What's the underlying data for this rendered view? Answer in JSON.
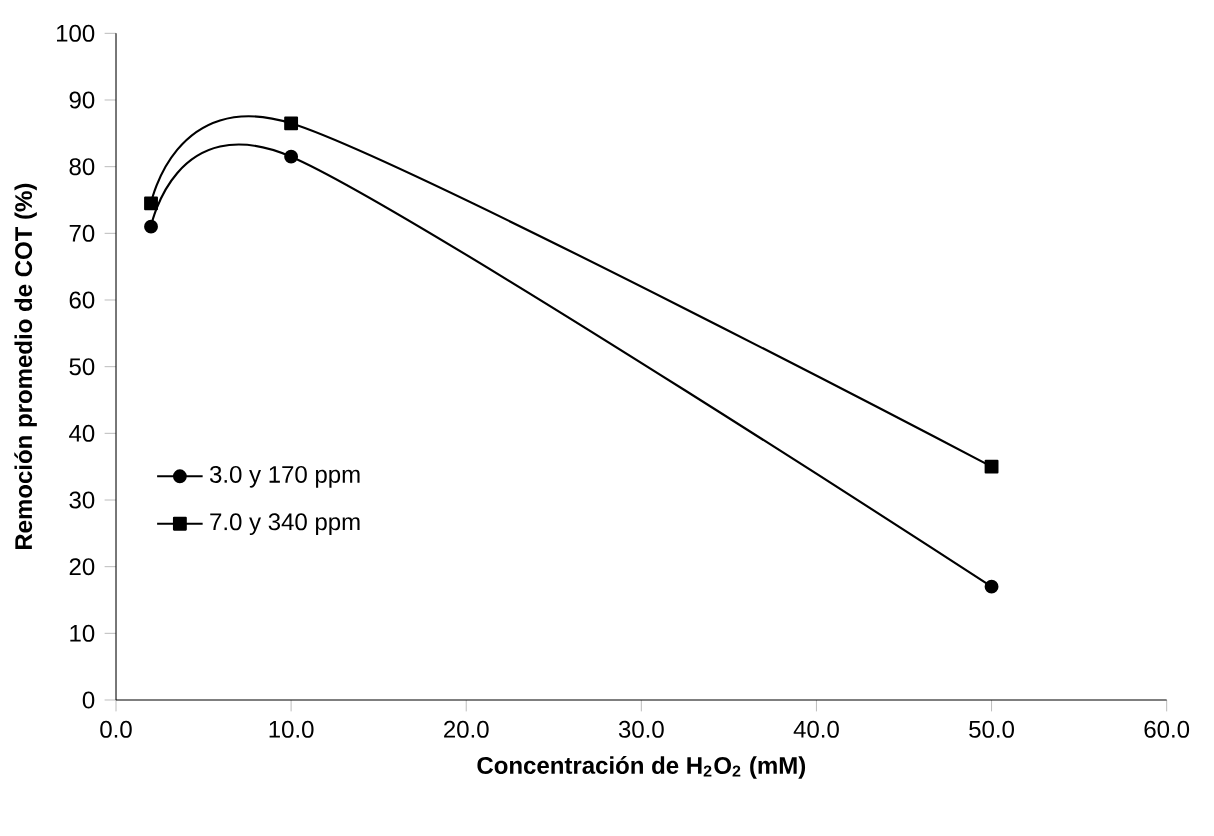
{
  "chart_data": {
    "type": "line",
    "xlabel": "Concentración de H$_{2}$O$_{2}$ (mM)",
    "ylabel": "Remoción promedio de COT  (%)",
    "xlim": [
      0,
      60
    ],
    "xticks": [
      {
        "value": 0,
        "label": "0.0"
      },
      {
        "value": 10,
        "label": "10.0"
      },
      {
        "value": 20,
        "label": "20.0"
      },
      {
        "value": 30,
        "label": "30.0"
      },
      {
        "value": 40,
        "label": "40.0"
      },
      {
        "value": 50,
        "label": "50.0"
      },
      {
        "value": 60,
        "label": "60.0"
      }
    ],
    "ylim": [
      0,
      100
    ],
    "yticks": [
      0,
      10,
      20,
      30,
      40,
      50,
      60,
      70,
      80,
      90,
      100
    ],
    "grid": false,
    "legend": "left",
    "line_style": "solid",
    "series": [
      {
        "name": "3.0 y 170 ppm",
        "color": "#000000",
        "marker": "circle",
        "x": [
          2,
          10,
          50
        ],
        "values": [
          71,
          81.5,
          17
        ]
      },
      {
        "name": "7.0 y 340 ppm",
        "color": "#000000",
        "marker": "square",
        "x": [
          2,
          10,
          50
        ],
        "values": [
          74.5,
          86.5,
          35
        ]
      }
    ]
  }
}
